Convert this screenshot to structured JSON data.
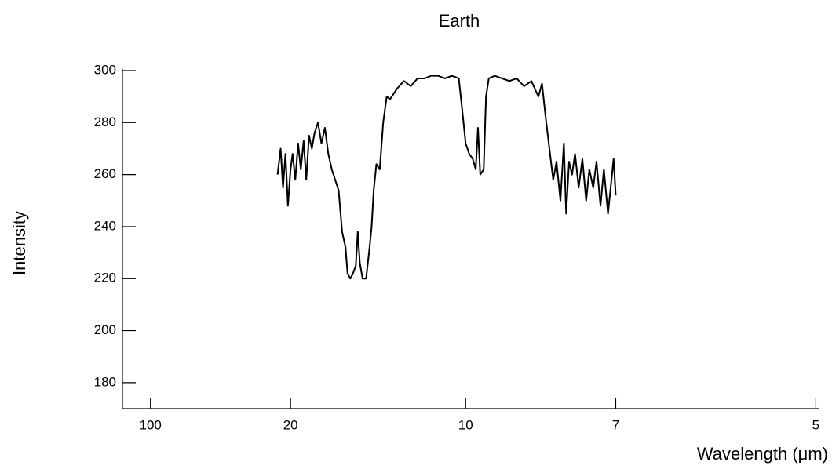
{
  "chart_data": {
    "type": "line",
    "title": "Earth",
    "x_label": "Wavelength (μm)",
    "y_label": "Intensity",
    "xscale": "reciprocal",
    "color": "#000000",
    "xlim": [
      500,
      4.98
    ],
    "xticks": [
      100,
      20,
      10,
      7,
      5
    ],
    "ylim": [
      170,
      300
    ],
    "yticks": [
      180,
      200,
      220,
      240,
      260,
      280,
      300
    ],
    "x": [
      21.6,
      21.2,
      20.9,
      20.6,
      20.3,
      20.0,
      19.77,
      19.47,
      19.17,
      18.89,
      18.61,
      18.35,
      18.09,
      17.83,
      17.59,
      17.29,
      17.0,
      16.72,
      16.45,
      16.19,
      15.94,
      15.69,
      15.45,
      15.22,
      15.09,
      14.91,
      14.74,
      14.57,
      14.45,
      14.33,
      14.17,
      13.97,
      13.78,
      13.67,
      13.56,
      13.42,
      13.25,
      13.08,
      12.91,
      12.75,
      12.44,
      12.14,
      11.86,
      11.59,
      11.33,
      11.09,
      10.85,
      10.63,
      10.41,
      10.2,
      10.1,
      10.0,
      9.9,
      9.8,
      9.72,
      9.66,
      9.6,
      9.51,
      9.45,
      9.38,
      9.23,
      9.06,
      8.89,
      8.73,
      8.57,
      8.42,
      8.28,
      8.21,
      8.14,
      8.07,
      8.0,
      7.94,
      7.87,
      7.81,
      7.77,
      7.72,
      7.67,
      7.62,
      7.56,
      7.5,
      7.44,
      7.39,
      7.33,
      7.28,
      7.22,
      7.17,
      7.11,
      7.06,
      7.03,
      7.0
    ],
    "values": [
      260,
      270,
      255,
      268,
      248,
      262,
      268,
      258,
      272,
      262,
      273,
      258,
      275,
      270,
      276,
      280,
      272,
      278,
      268,
      262,
      258,
      254,
      238,
      232,
      222,
      220,
      222,
      225,
      238,
      226,
      220,
      220,
      232,
      240,
      254,
      264,
      262,
      280,
      290,
      289,
      293,
      296,
      294,
      297,
      297,
      298,
      298,
      297,
      298,
      297,
      285,
      272,
      268,
      266,
      262,
      278,
      260,
      262,
      290,
      297,
      298,
      297,
      296,
      297,
      294,
      296,
      290,
      295,
      282,
      270,
      258,
      265,
      250,
      272,
      245,
      265,
      260,
      268,
      255,
      266,
      250,
      262,
      255,
      265,
      248,
      262,
      245,
      258,
      266,
      252
    ]
  }
}
